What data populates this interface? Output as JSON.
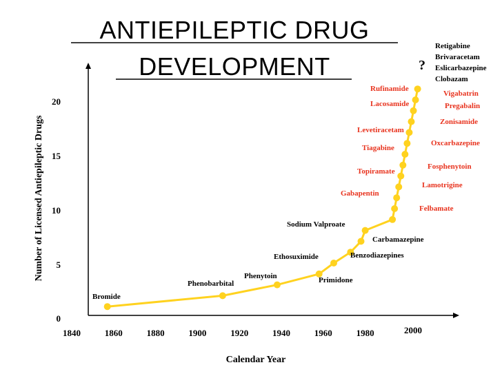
{
  "chart_data": {
    "type": "line",
    "title_lines": [
      "ANTIEPILEPTIC DRUG",
      "DEVELOPMENT"
    ],
    "xlabel": "Calendar Year",
    "ylabel": "Number of Licensed Antiepileptic Drugs",
    "xlim": [
      1840,
      2010
    ],
    "ylim": [
      0,
      22
    ],
    "x_ticks": [
      1840,
      1860,
      1880,
      1900,
      1920,
      1940,
      1960,
      1980,
      2000
    ],
    "y_ticks": [
      0,
      5,
      10,
      15,
      20
    ],
    "line_color": "#FFD21F",
    "points": [
      {
        "x": 1857,
        "y": 1
      },
      {
        "x": 1912,
        "y": 2
      },
      {
        "x": 1938,
        "y": 3
      },
      {
        "x": 1958,
        "y": 4
      },
      {
        "x": 1965,
        "y": 5
      },
      {
        "x": 1973,
        "y": 6
      },
      {
        "x": 1978,
        "y": 7
      },
      {
        "x": 1980,
        "y": 8
      },
      {
        "x": 1993,
        "y": 9
      },
      {
        "x": 1994,
        "y": 10
      },
      {
        "x": 1995,
        "y": 11
      },
      {
        "x": 1996,
        "y": 12
      },
      {
        "x": 1997,
        "y": 13
      },
      {
        "x": 1998,
        "y": 14
      },
      {
        "x": 1999,
        "y": 15
      },
      {
        "x": 2000,
        "y": 16
      },
      {
        "x": 2001,
        "y": 17
      },
      {
        "x": 2002,
        "y": 18
      },
      {
        "x": 2003,
        "y": 19
      },
      {
        "x": 2004,
        "y": 20
      },
      {
        "x": 2005,
        "y": 21
      }
    ],
    "annotations": [
      {
        "text": "Bromide",
        "color": "#000000"
      },
      {
        "text": "Phenobarbital",
        "color": "#000000"
      },
      {
        "text": "Phenytoin",
        "color": "#000000"
      },
      {
        "text": "Primidone",
        "color": "#000000"
      },
      {
        "text": "Ethosuximide",
        "color": "#000000"
      },
      {
        "text": "Benzodiazepines",
        "color": "#000000"
      },
      {
        "text": "Carbamazepine",
        "color": "#000000"
      },
      {
        "text": "Sodium Valproate",
        "color": "#000000"
      },
      {
        "text": "Felbamate",
        "color": "#E8331E"
      },
      {
        "text": "Gabapentin",
        "color": "#E8331E"
      },
      {
        "text": "Lamotrigine",
        "color": "#E8331E"
      },
      {
        "text": "Topiramate",
        "color": "#E8331E"
      },
      {
        "text": "Fosphenytoin",
        "color": "#E8331E"
      },
      {
        "text": "Tiagabine",
        "color": "#E8331E"
      },
      {
        "text": "Oxcarbazepine",
        "color": "#E8331E"
      },
      {
        "text": "Levetiracetam",
        "color": "#E8331E"
      },
      {
        "text": "Zonisamide",
        "color": "#E8331E"
      },
      {
        "text": "Lacosamide",
        "color": "#E8331E"
      },
      {
        "text": "Pregabalin",
        "color": "#E8331E"
      },
      {
        "text": "Rufinamide",
        "color": "#E8331E"
      },
      {
        "text": "Vigabatrin",
        "color": "#E8331E"
      },
      {
        "text": "Retigabine",
        "color": "#000000"
      },
      {
        "text": "Brivaracetam",
        "color": "#000000"
      },
      {
        "text": "Eslicarbazepine",
        "color": "#000000"
      },
      {
        "text": "Clobazam",
        "color": "#000000"
      },
      {
        "text": "?",
        "color": "#000000"
      }
    ]
  }
}
